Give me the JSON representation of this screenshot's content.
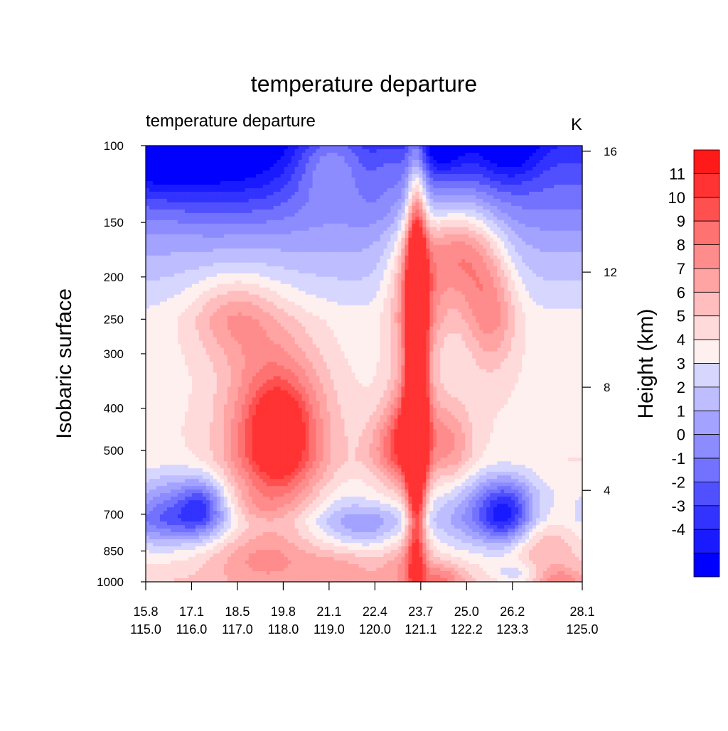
{
  "chart_data": {
    "type": "heatmap",
    "subtype": "filled-contour-cross-section",
    "title": "temperature departure",
    "left_string": "temperature departure",
    "units": "K",
    "ylabel": "Isobaric surface",
    "ylabel_right": "Height (km)",
    "y_scale": "log",
    "y_reversed": true,
    "y_ticks": [
      100,
      150,
      200,
      250,
      300,
      400,
      500,
      700,
      850,
      1000
    ],
    "y_tick_labels": [
      "100",
      "150",
      "200",
      "250",
      "300",
      "400",
      "500",
      "700",
      "850",
      "1000"
    ],
    "right_ticks": [
      {
        "height": 16,
        "pressure": 103,
        "label": "16"
      },
      {
        "height": 12,
        "pressure": 195,
        "label": "12"
      },
      {
        "height": 8,
        "pressure": 358,
        "label": "8"
      },
      {
        "height": 4,
        "pressure": 617,
        "label": "4"
      }
    ],
    "x_ticks": [
      {
        "frac": 0.0,
        "lat": "15.8",
        "lon": "115.0"
      },
      {
        "frac": 0.105,
        "lat": "17.1",
        "lon": "116.0"
      },
      {
        "frac": 0.21,
        "lat": "18.5",
        "lon": "117.0"
      },
      {
        "frac": 0.315,
        "lat": "19.8",
        "lon": "118.0"
      },
      {
        "frac": 0.42,
        "lat": "21.1",
        "lon": "119.0"
      },
      {
        "frac": 0.525,
        "lat": "22.4",
        "lon": "120.0"
      },
      {
        "frac": 0.63,
        "lat": "23.7",
        "lon": "121.1"
      },
      {
        "frac": 0.735,
        "lat": "25.0",
        "lon": "122.2"
      },
      {
        "frac": 0.84,
        "lat": "26.2",
        "lon": "123.3"
      },
      {
        "frac": 1.0,
        "lat": "28.1",
        "lon": "125.0"
      }
    ],
    "contour_levels": [
      -4,
      -3,
      -2,
      -1,
      0,
      1,
      2,
      3,
      4,
      5,
      6,
      7,
      8,
      9,
      10,
      11
    ],
    "colorbar_labels": [
      "11",
      "10",
      "9",
      "8",
      "7",
      "6",
      "5",
      "4",
      "3",
      "2",
      "1",
      "0",
      "-1",
      "-2",
      "-3",
      "-4"
    ],
    "colors": [
      "#0000ff",
      "#1a1aff",
      "#3333ff",
      "#5050ff",
      "#7272ff",
      "#8c8cff",
      "#a3a3ff",
      "#bdbdff",
      "#d6d6ff",
      "#fff0f0",
      "#ffdada",
      "#ffbdbd",
      "#ffa3a3",
      "#ff8c8c",
      "#ff7272",
      "#ff5050",
      "#ff3333",
      "#ff1a1a"
    ],
    "grid": false,
    "legend": "right",
    "features": [
      {
        "x": 0.03,
        "p": 100,
        "v": -4.2,
        "sx": 0.11,
        "sy": 0.1
      },
      {
        "x": 0.2,
        "p": 104,
        "v": -2.8,
        "sx": 0.16,
        "sy": 0.14
      },
      {
        "x": 0.68,
        "p": 102,
        "v": -2.6,
        "sx": 0.05,
        "sy": 0.06
      },
      {
        "x": 0.83,
        "p": 103,
        "v": -2.6,
        "sx": 0.07,
        "sy": 0.07
      },
      {
        "x": 0.42,
        "p": 108,
        "v": 3.5,
        "sx": 0.08,
        "sy": 0.1
      },
      {
        "x": 0.56,
        "p": 108,
        "v": 1.2,
        "sx": 0.04,
        "sy": 0.08
      },
      {
        "x": 0.96,
        "p": 110,
        "v": 0.6,
        "sx": 0.08,
        "sy": 0.08
      },
      {
        "x": 0.72,
        "p": 175,
        "v": 6.0,
        "sx": 0.08,
        "sy": 0.12
      },
      {
        "x": 0.62,
        "p": 210,
        "v": 5.5,
        "sx": 0.06,
        "sy": 0.18
      },
      {
        "x": 0.79,
        "p": 235,
        "v": 4.0,
        "sx": 0.06,
        "sy": 0.14
      },
      {
        "x": 0.2,
        "p": 245,
        "v": 3.2,
        "sx": 0.1,
        "sy": 0.1
      },
      {
        "x": 0.62,
        "p": 330,
        "v": 12.5,
        "sx": 0.022,
        "sy": 0.45
      },
      {
        "x": 0.61,
        "p": 455,
        "v": 6.4,
        "sx": 0.05,
        "sy": 0.12
      },
      {
        "x": 0.56,
        "p": 500,
        "v": 3.0,
        "sx": 0.06,
        "sy": 0.09
      },
      {
        "x": 0.7,
        "p": 480,
        "v": 3.0,
        "sx": 0.05,
        "sy": 0.1
      },
      {
        "x": 0.3,
        "p": 465,
        "v": 7.6,
        "sx": 0.11,
        "sy": 0.21
      },
      {
        "x": 0.31,
        "p": 455,
        "v": 2.6,
        "sx": 0.05,
        "sy": 0.08
      },
      {
        "x": 0.13,
        "p": 670,
        "v": -4.3,
        "sx": 0.05,
        "sy": 0.06
      },
      {
        "x": 0.06,
        "p": 660,
        "v": -2.6,
        "sx": 0.09,
        "sy": 0.08
      },
      {
        "x": 0.83,
        "p": 700,
        "v": -5.4,
        "sx": 0.06,
        "sy": 0.08
      },
      {
        "x": 0.78,
        "p": 690,
        "v": -3.0,
        "sx": 0.09,
        "sy": 0.08
      },
      {
        "x": 0.5,
        "p": 720,
        "v": -2.5,
        "sx": 0.1,
        "sy": 0.06
      },
      {
        "x": 0.52,
        "p": 660,
        "v": 1.2,
        "sx": 0.08,
        "sy": 0.04
      },
      {
        "x": 0.25,
        "p": 680,
        "v": 1.0,
        "sx": 0.06,
        "sy": 0.04
      },
      {
        "x": 0.05,
        "p": 730,
        "v": -2.2,
        "sx": 0.1,
        "sy": 0.05
      },
      {
        "x": 0.9,
        "p": 810,
        "v": 3.0,
        "sx": 0.1,
        "sy": 0.08
      },
      {
        "x": 0.25,
        "p": 880,
        "v": 2.3,
        "sx": 0.12,
        "sy": 0.06
      },
      {
        "x": 0.45,
        "p": 920,
        "v": 2.0,
        "sx": 0.1,
        "sy": 0.05
      },
      {
        "x": 0.6,
        "p": 900,
        "v": 2.5,
        "sx": 0.06,
        "sy": 0.08
      },
      {
        "x": 0.68,
        "p": 990,
        "v": 3.0,
        "sx": 0.05,
        "sy": 0.04
      },
      {
        "x": 0.95,
        "p": 1000,
        "v": 2.5,
        "sx": 0.05,
        "sy": 0.03
      },
      {
        "x": 0.85,
        "p": 960,
        "v": -2.5,
        "sx": 0.06,
        "sy": 0.03
      }
    ]
  }
}
